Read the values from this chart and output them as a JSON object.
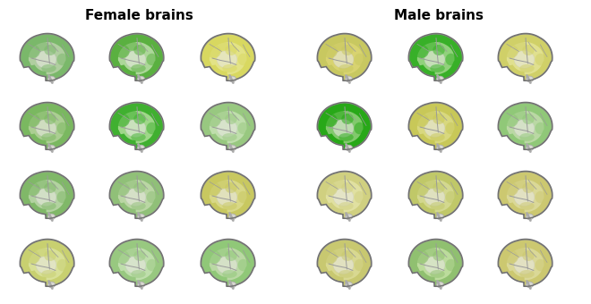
{
  "title_left": "Female brains",
  "title_right": "Male brains",
  "title_fontsize": 11,
  "title_fontweight": "bold",
  "background_color": "#ffffff",
  "n_rows": 4,
  "n_cols_per_group": 3,
  "brain_colors_female": [
    [
      "mixed_green",
      "bright_green",
      "yellow_dominant"
    ],
    [
      "green_left",
      "bright_green2",
      "pale_green"
    ],
    [
      "green_rim",
      "pale_green2",
      "yellow_right"
    ],
    [
      "yellow_mixed",
      "pale_green3",
      "pale_green4"
    ]
  ],
  "brain_colors_male": [
    [
      "yellow_left",
      "bright_green3",
      "yellow_all"
    ],
    [
      "bright_green4",
      "yellow_center",
      "pale_green5"
    ],
    [
      "pale_yellow",
      "yellow_green_mix",
      "yellow_pale2"
    ],
    [
      "yellow_pale3",
      "tiny_green",
      "yellow_pale4"
    ]
  ],
  "color_map": {
    "mixed_green": {
      "outer": "#7ab86a",
      "inner": "#c8d8b8",
      "spots": "#4a9840"
    },
    "bright_green": {
      "outer": "#5ab040",
      "inner": "#d0e8c0",
      "spots": "#30a020"
    },
    "yellow_dominant": {
      "outer": "#d8d860",
      "inner": "#e8e898",
      "spots": "#b8b830"
    },
    "green_left": {
      "outer": "#7ab860",
      "inner": "#c0d8a8",
      "spots": "#3a9830"
    },
    "bright_green2": {
      "outer": "#40b030",
      "inner": "#c8e8b0",
      "spots": "#208818"
    },
    "pale_green": {
      "outer": "#98c880",
      "inner": "#d0e8c0",
      "spots": "#68a850"
    },
    "green_rim": {
      "outer": "#80b868",
      "inner": "#c8deb8",
      "spots": "#50a038"
    },
    "pale_green2": {
      "outer": "#90c078",
      "inner": "#cce0b8",
      "spots": "#60a848"
    },
    "yellow_right": {
      "outer": "#c8c860",
      "inner": "#e0e098",
      "spots": "#a0a030"
    },
    "yellow_mixed": {
      "outer": "#c8d070",
      "inner": "#e0e8a8",
      "spots": "#a0a840"
    },
    "pale_green3": {
      "outer": "#98c880",
      "inner": "#d0e8c0",
      "spots": "#68a850"
    },
    "pale_green4": {
      "outer": "#90c878",
      "inner": "#cce0b8",
      "spots": "#60a848"
    },
    "yellow_left": {
      "outer": "#c8c860",
      "inner": "#dfd878",
      "spots": "#a8a030"
    },
    "bright_green3": {
      "outer": "#38b028",
      "inner": "#b8e0a0",
      "spots": "#189010"
    },
    "yellow_all": {
      "outer": "#d0d068",
      "inner": "#e8e8a0",
      "spots": "#b0b040"
    },
    "bright_green4": {
      "outer": "#28a818",
      "inner": "#a8d890",
      "spots": "#108008"
    },
    "yellow_center": {
      "outer": "#c8c858",
      "inner": "#e0e090",
      "spots": "#a8a838"
    },
    "pale_green5": {
      "outer": "#90c878",
      "inner": "#cce0b8",
      "spots": "#60a848"
    },
    "pale_yellow": {
      "outer": "#d0d080",
      "inner": "#e8e8b0",
      "spots": "#b0b060"
    },
    "yellow_green_mix": {
      "outer": "#c0c868",
      "inner": "#dce0a0",
      "spots": "#a0a840"
    },
    "yellow_pale2": {
      "outer": "#ccc870",
      "inner": "#e0e0a8",
      "spots": "#aca840"
    },
    "yellow_pale3": {
      "outer": "#c8c870",
      "inner": "#e0e0a0",
      "spots": "#a8a840"
    },
    "tiny_green": {
      "outer": "#90c070",
      "inner": "#d0e8b0",
      "spots": "#50a038"
    },
    "yellow_pale4": {
      "outer": "#ccc870",
      "inner": "#e0e0a8",
      "spots": "#aca848"
    }
  }
}
